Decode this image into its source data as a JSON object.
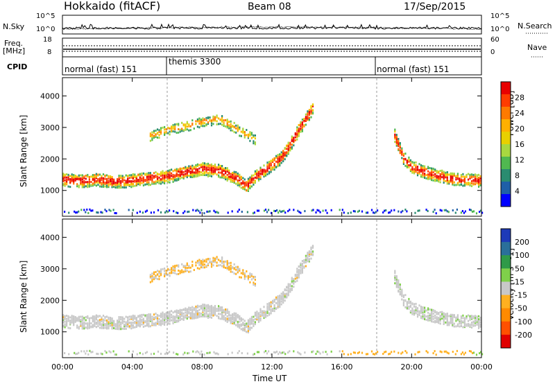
{
  "header": {
    "station": "Hokkaido (fitACF)",
    "beam": "Beam 08",
    "date": "17/Sep/2015"
  },
  "left_labels": {
    "nsky": "N.Sky",
    "freq": "Freq.",
    "mhz": "[MHz]",
    "cpid": "CPID"
  },
  "right_labels": {
    "nsearch": "N.Search",
    "nave": "Nave"
  },
  "nsky_axis": {
    "top": "10^5",
    "bottom": "10^0"
  },
  "freq_axis": {
    "top": "18",
    "bottom": "8"
  },
  "nave_axis": {
    "top": "60",
    "bottom": "0"
  },
  "cpid_segments": [
    {
      "label": "normal (fast) 151",
      "start_hour": 0
    },
    {
      "label": "themis 3300",
      "start_hour": 6
    },
    {
      "label": "normal (fast) 151",
      "start_hour": 18
    }
  ],
  "colorbars": {
    "power": {
      "title": "Power [dB]",
      "ticks": [
        "28",
        "24",
        "20",
        "16",
        "12",
        "8",
        "4"
      ],
      "colors": [
        "#e80000",
        "#ff3c00",
        "#ff7a00",
        "#ffb000",
        "#e8d000",
        "#a8d840",
        "#50b850",
        "#2a8c70",
        "#1f5fa8",
        "#0000ff"
      ]
    },
    "velocity": {
      "title": "Velocity [m s^-1]",
      "ticks": [
        "200",
        "100",
        "50",
        "15",
        "-15",
        "-50",
        "-100",
        "-200"
      ],
      "colors": [
        "#1d3ab8",
        "#2a6f9a",
        "#2f9a48",
        "#7fd04a",
        "#c8c8c8",
        "#ffb020",
        "#ff8a00",
        "#ff5000",
        "#e00000"
      ]
    }
  },
  "chart_data": [
    {
      "type": "heatmap",
      "name": "power",
      "ylabel": "Slant Range [km]",
      "xlabel": "Time UT",
      "xlim": [
        0,
        24
      ],
      "ylim": [
        180,
        4580
      ],
      "xticks": [
        "00:00",
        "04:00",
        "08:00",
        "12:00",
        "16:00",
        "20:00",
        "00:00"
      ],
      "yticks": [
        1000,
        2000,
        3000,
        4000
      ],
      "mode_change_hours": [
        6,
        18
      ],
      "ground_scatter_range": 300,
      "main_echo": [
        [
          0,
          1320
        ],
        [
          1,
          1270
        ],
        [
          2,
          1320
        ],
        [
          3,
          1250
        ],
        [
          4,
          1300
        ],
        [
          5,
          1360
        ],
        [
          6,
          1420
        ],
        [
          7,
          1550
        ],
        [
          8,
          1650
        ],
        [
          9,
          1600
        ],
        [
          10,
          1350
        ],
        [
          10.5,
          1100
        ],
        [
          11,
          1400
        ],
        [
          11.5,
          1600
        ],
        [
          12,
          1800
        ],
        [
          12.5,
          2000
        ],
        [
          13,
          2400
        ],
        [
          13.5,
          2900
        ],
        [
          14,
          3300
        ],
        [
          14.3,
          3600
        ]
      ],
      "upper_echo": [
        [
          5,
          2700
        ],
        [
          6,
          2900
        ],
        [
          7,
          3000
        ],
        [
          8,
          3150
        ],
        [
          9,
          3250
        ],
        [
          10,
          2900
        ],
        [
          11,
          2600
        ]
      ],
      "evening_echo": [
        [
          19,
          2700
        ],
        [
          19.5,
          2000
        ],
        [
          20,
          1700
        ],
        [
          21,
          1500
        ],
        [
          22,
          1350
        ],
        [
          23,
          1300
        ],
        [
          24,
          1280
        ]
      ]
    },
    {
      "type": "heatmap",
      "name": "velocity",
      "ylabel": "Slant Range [km]",
      "xlabel": "Time UT",
      "xlim": [
        0,
        24
      ],
      "ylim": [
        180,
        4580
      ],
      "xticks": [
        "00:00",
        "04:00",
        "08:00",
        "12:00",
        "16:00",
        "20:00",
        "00:00"
      ],
      "yticks": [
        1000,
        2000,
        3000,
        4000
      ],
      "dominant_velocity": "-15 to 15",
      "upper_echo_velocity": "-50"
    }
  ],
  "xlabel": "Time UT"
}
